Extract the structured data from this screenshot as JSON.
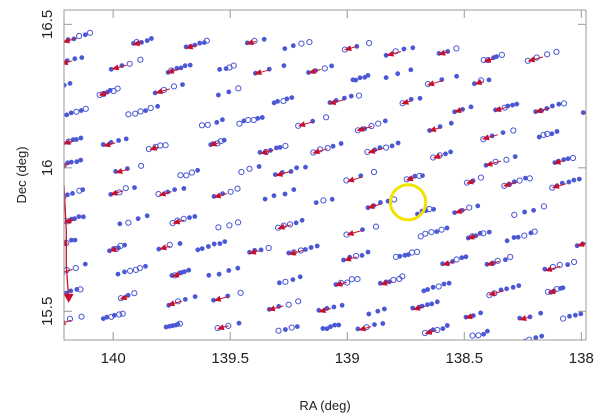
{
  "chart_data": {
    "type": "scatter",
    "title": "",
    "xlabel": "RA (deg)",
    "ylabel": "Dec (deg)",
    "x_reversed": true,
    "xlim": [
      140.21,
      137.98
    ],
    "ylim": [
      15.4,
      16.55
    ],
    "x_ticks": [
      140,
      139.5,
      139,
      138.5,
      138
    ],
    "x_tick_labels": [
      "140",
      "139.5",
      "139",
      "138.5",
      "138"
    ],
    "y_ticks": [
      15.5,
      16,
      16.5
    ],
    "y_tick_labels": [
      "15.5",
      "16",
      "16.5"
    ],
    "grid": false,
    "legend": "none",
    "colors": {
      "points": "#4a58d6",
      "arrows": "#c8102e",
      "highlight_circle": "#f2e200",
      "frame": "#9a9a9a"
    },
    "marker_styles": [
      "filled-dot",
      "open-circle",
      "arrowhead"
    ],
    "highlight": {
      "ra": 138.74,
      "dec": 15.88,
      "radius_deg": 0.075
    },
    "trail_rows": [
      {
        "dec": 16.45,
        "ra_start": 140.25,
        "ra_end": 137.95
      },
      {
        "dec": 16.36,
        "ra_start": 140.25,
        "ra_end": 138.35
      },
      {
        "dec": 16.27,
        "ra_start": 140.25,
        "ra_end": 137.95
      },
      {
        "dec": 16.18,
        "ra_start": 140.25,
        "ra_end": 137.95
      },
      {
        "dec": 16.09,
        "ra_start": 140.25,
        "ra_end": 137.95
      },
      {
        "dec": 16.0,
        "ra_start": 140.25,
        "ra_end": 137.95
      },
      {
        "dec": 15.91,
        "ra_start": 140.25,
        "ra_end": 138.1
      },
      {
        "dec": 15.82,
        "ra_start": 140.25,
        "ra_end": 137.95
      },
      {
        "dec": 15.73,
        "ra_start": 140.25,
        "ra_end": 137.95
      },
      {
        "dec": 15.64,
        "ra_start": 140.25,
        "ra_end": 137.95
      },
      {
        "dec": 15.55,
        "ra_start": 140.25,
        "ra_end": 137.95
      },
      {
        "dec": 15.47,
        "ra_start": 140.25,
        "ra_end": 137.95
      }
    ],
    "red_trail": [
      {
        "ra": 140.21,
        "dec": 15.94
      },
      {
        "ra": 140.2,
        "dec": 15.78
      },
      {
        "ra": 140.2,
        "dec": 15.66
      },
      {
        "ra": 140.19,
        "dec": 15.54
      }
    ]
  }
}
